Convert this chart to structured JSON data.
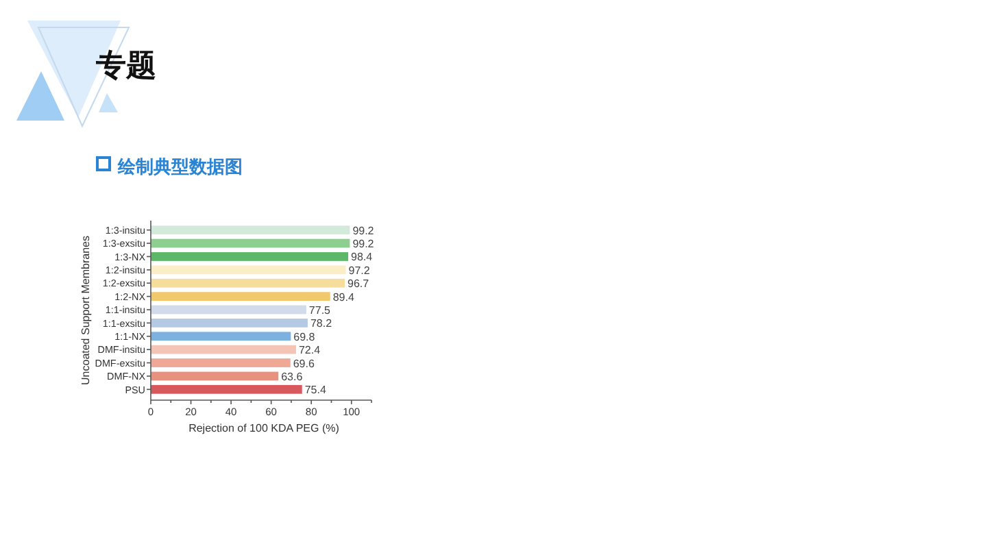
{
  "chart_data": {
    "type": "bar",
    "orientation": "horizontal",
    "title": "专题",
    "subtitle": "绘制典型数据图",
    "xlabel": "Rejection of 100 KDA PEG (%)",
    "ylabel": "Uncoated Support Membranes",
    "categories": [
      "1:3-insitu",
      "1:3-exsitu",
      "1:3-NX",
      "1:2-insitu",
      "1:2-exsitu",
      "1:2-NX",
      "1:1-insitu",
      "1:1-exsitu",
      "1:1-NX",
      "DMF-insitu",
      "DMF-exsitu",
      "DMF-NX",
      "PSU"
    ],
    "values": [
      99.2,
      99.2,
      98.4,
      97.2,
      96.7,
      89.4,
      77.5,
      78.2,
      69.8,
      72.4,
      69.6,
      63.6,
      75.4
    ],
    "colors": [
      "#d3eadb",
      "#8dcf8e",
      "#5cb868",
      "#fbeec6",
      "#f6dd9c",
      "#f1c96c",
      "#d2dbea",
      "#b5c9e4",
      "#7db2e0",
      "#f4c5b7",
      "#efa796",
      "#e8917f",
      "#d8595d"
    ],
    "xlim": [
      0,
      110
    ],
    "xticks": [
      0,
      {
        "value": 10,
        "label": null
      },
      20,
      {
        "value": 30,
        "label": null
      },
      40,
      {
        "value": 50,
        "label": null
      },
      60,
      {
        "value": 70,
        "label": null
      },
      80,
      {
        "value": 90,
        "label": null
      },
      100,
      {
        "value": 110,
        "label": null
      }
    ],
    "data_labels": true
  }
}
